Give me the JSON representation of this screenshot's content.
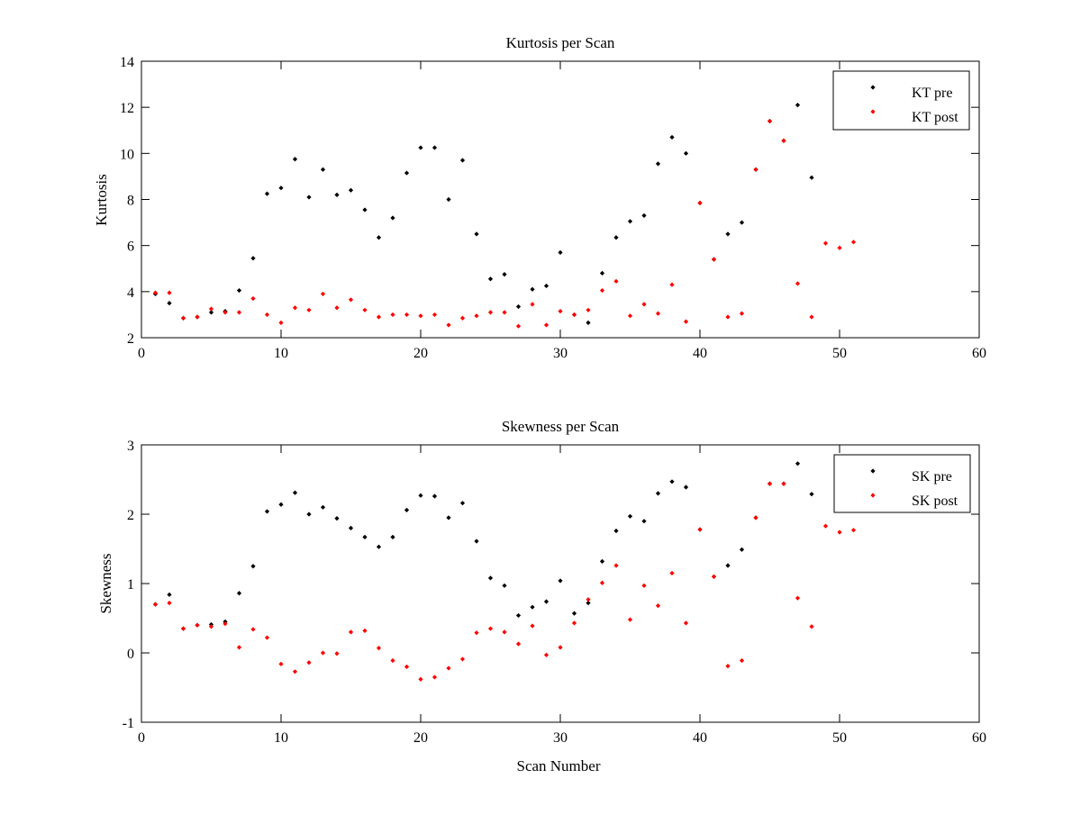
{
  "chart_data": [
    {
      "type": "scatter",
      "title": "Kurtosis per Scan",
      "xlabel": "",
      "ylabel": "Kurtosis",
      "xlim": [
        0,
        60
      ],
      "ylim": [
        2,
        14
      ],
      "xticks": [
        0,
        10,
        20,
        30,
        40,
        50,
        60
      ],
      "yticks": [
        2,
        4,
        6,
        8,
        10,
        12,
        14
      ],
      "grid": false,
      "legend_position": "top-right",
      "series": [
        {
          "name": "KT pre",
          "color": "#000000",
          "x": [
            1,
            2,
            3,
            4,
            5,
            6,
            7,
            8,
            9,
            10,
            11,
            12,
            13,
            14,
            15,
            16,
            17,
            18,
            19,
            20,
            21,
            22,
            23,
            24,
            25,
            26,
            27,
            28,
            29,
            30,
            31,
            32,
            33,
            34,
            35,
            36,
            37,
            38,
            39,
            40,
            41,
            42,
            43,
            44,
            45,
            46,
            47,
            48
          ],
          "y": [
            3.9,
            3.5,
            2.85,
            2.9,
            3.1,
            3.15,
            4.05,
            5.45,
            8.25,
            8.5,
            9.75,
            8.1,
            9.3,
            8.2,
            8.4,
            7.55,
            6.35,
            7.2,
            9.15,
            10.25,
            10.25,
            8.0,
            9.7,
            6.5,
            4.55,
            4.75,
            3.35,
            4.1,
            4.25,
            5.7,
            3.0,
            2.65,
            4.8,
            6.35,
            7.05,
            7.3,
            9.55,
            10.7,
            10.0,
            7.85,
            5.4,
            6.5,
            7.0,
            9.3,
            11.4,
            10.55,
            12.1,
            8.95
          ]
        },
        {
          "name": "KT post",
          "color": "#ff0000",
          "x": [
            1,
            2,
            3,
            4,
            5,
            6,
            7,
            8,
            9,
            10,
            11,
            12,
            13,
            14,
            15,
            16,
            17,
            18,
            19,
            20,
            21,
            22,
            23,
            24,
            25,
            26,
            27,
            28,
            29,
            30,
            31,
            32,
            33,
            34,
            35,
            36,
            37,
            38,
            39,
            40,
            41,
            42,
            43,
            44,
            45,
            46,
            47,
            48,
            49,
            50,
            51
          ],
          "y": [
            3.95,
            3.95,
            2.85,
            2.9,
            3.25,
            3.1,
            3.1,
            3.7,
            3.0,
            2.65,
            3.3,
            3.2,
            3.9,
            3.3,
            3.65,
            3.2,
            2.9,
            3.0,
            3.0,
            2.95,
            3.0,
            2.55,
            2.85,
            2.95,
            3.1,
            3.1,
            2.5,
            3.45,
            2.55,
            3.15,
            3.0,
            3.2,
            4.05,
            4.45,
            2.95,
            3.45,
            3.05,
            4.3,
            2.7,
            7.85,
            5.4,
            2.9,
            3.05,
            9.3,
            11.4,
            10.55,
            4.35,
            2.9,
            6.1,
            5.9,
            6.15
          ]
        }
      ]
    },
    {
      "type": "scatter",
      "title": "Skewness per Scan",
      "xlabel": "Scan Number",
      "ylabel": "Skewness",
      "xlim": [
        0,
        60
      ],
      "ylim": [
        -1,
        3
      ],
      "xticks": [
        0,
        10,
        20,
        30,
        40,
        50,
        60
      ],
      "yticks": [
        -1,
        0,
        1,
        2,
        3
      ],
      "grid": false,
      "legend_position": "top-right",
      "series": [
        {
          "name": "SK pre",
          "color": "#000000",
          "x": [
            1,
            2,
            3,
            4,
            5,
            6,
            7,
            8,
            9,
            10,
            11,
            12,
            13,
            14,
            15,
            16,
            17,
            18,
            19,
            20,
            21,
            22,
            23,
            24,
            25,
            26,
            27,
            28,
            29,
            30,
            31,
            32,
            33,
            34,
            35,
            36,
            37,
            38,
            39,
            40,
            41,
            42,
            43,
            44,
            45,
            46,
            47,
            48
          ],
          "y": [
            0.7,
            0.84,
            0.35,
            0.4,
            0.41,
            0.45,
            0.86,
            1.25,
            2.04,
            2.14,
            2.31,
            2.0,
            2.1,
            1.94,
            1.8,
            1.67,
            1.53,
            1.67,
            2.06,
            2.27,
            2.26,
            1.95,
            2.16,
            1.61,
            1.08,
            0.97,
            0.54,
            0.66,
            0.74,
            1.04,
            0.57,
            0.72,
            1.32,
            1.76,
            1.97,
            1.9,
            2.3,
            2.47,
            2.39,
            1.78,
            1.1,
            1.26,
            1.49,
            1.95,
            2.44,
            2.44,
            2.73,
            2.29
          ]
        },
        {
          "name": "SK post",
          "color": "#ff0000",
          "x": [
            1,
            2,
            3,
            4,
            5,
            6,
            7,
            8,
            9,
            10,
            11,
            12,
            13,
            14,
            15,
            16,
            17,
            18,
            19,
            20,
            21,
            22,
            23,
            24,
            25,
            26,
            27,
            28,
            29,
            30,
            31,
            32,
            33,
            34,
            35,
            36,
            37,
            38,
            39,
            40,
            41,
            42,
            43,
            44,
            45,
            46,
            47,
            48,
            49,
            50,
            51
          ],
          "y": [
            0.7,
            0.72,
            0.35,
            0.4,
            0.38,
            0.42,
            0.08,
            0.34,
            0.22,
            -0.16,
            -0.27,
            -0.14,
            0.0,
            -0.01,
            0.3,
            0.32,
            0.07,
            -0.11,
            -0.2,
            -0.38,
            -0.35,
            -0.22,
            -0.09,
            0.29,
            0.35,
            0.3,
            0.13,
            0.39,
            -0.03,
            0.08,
            0.43,
            0.77,
            1.01,
            1.26,
            0.48,
            0.97,
            0.68,
            1.15,
            0.43,
            1.78,
            1.1,
            -0.19,
            -0.11,
            1.95,
            2.44,
            2.44,
            0.79,
            0.38,
            1.83,
            1.74,
            1.77
          ]
        }
      ]
    }
  ]
}
